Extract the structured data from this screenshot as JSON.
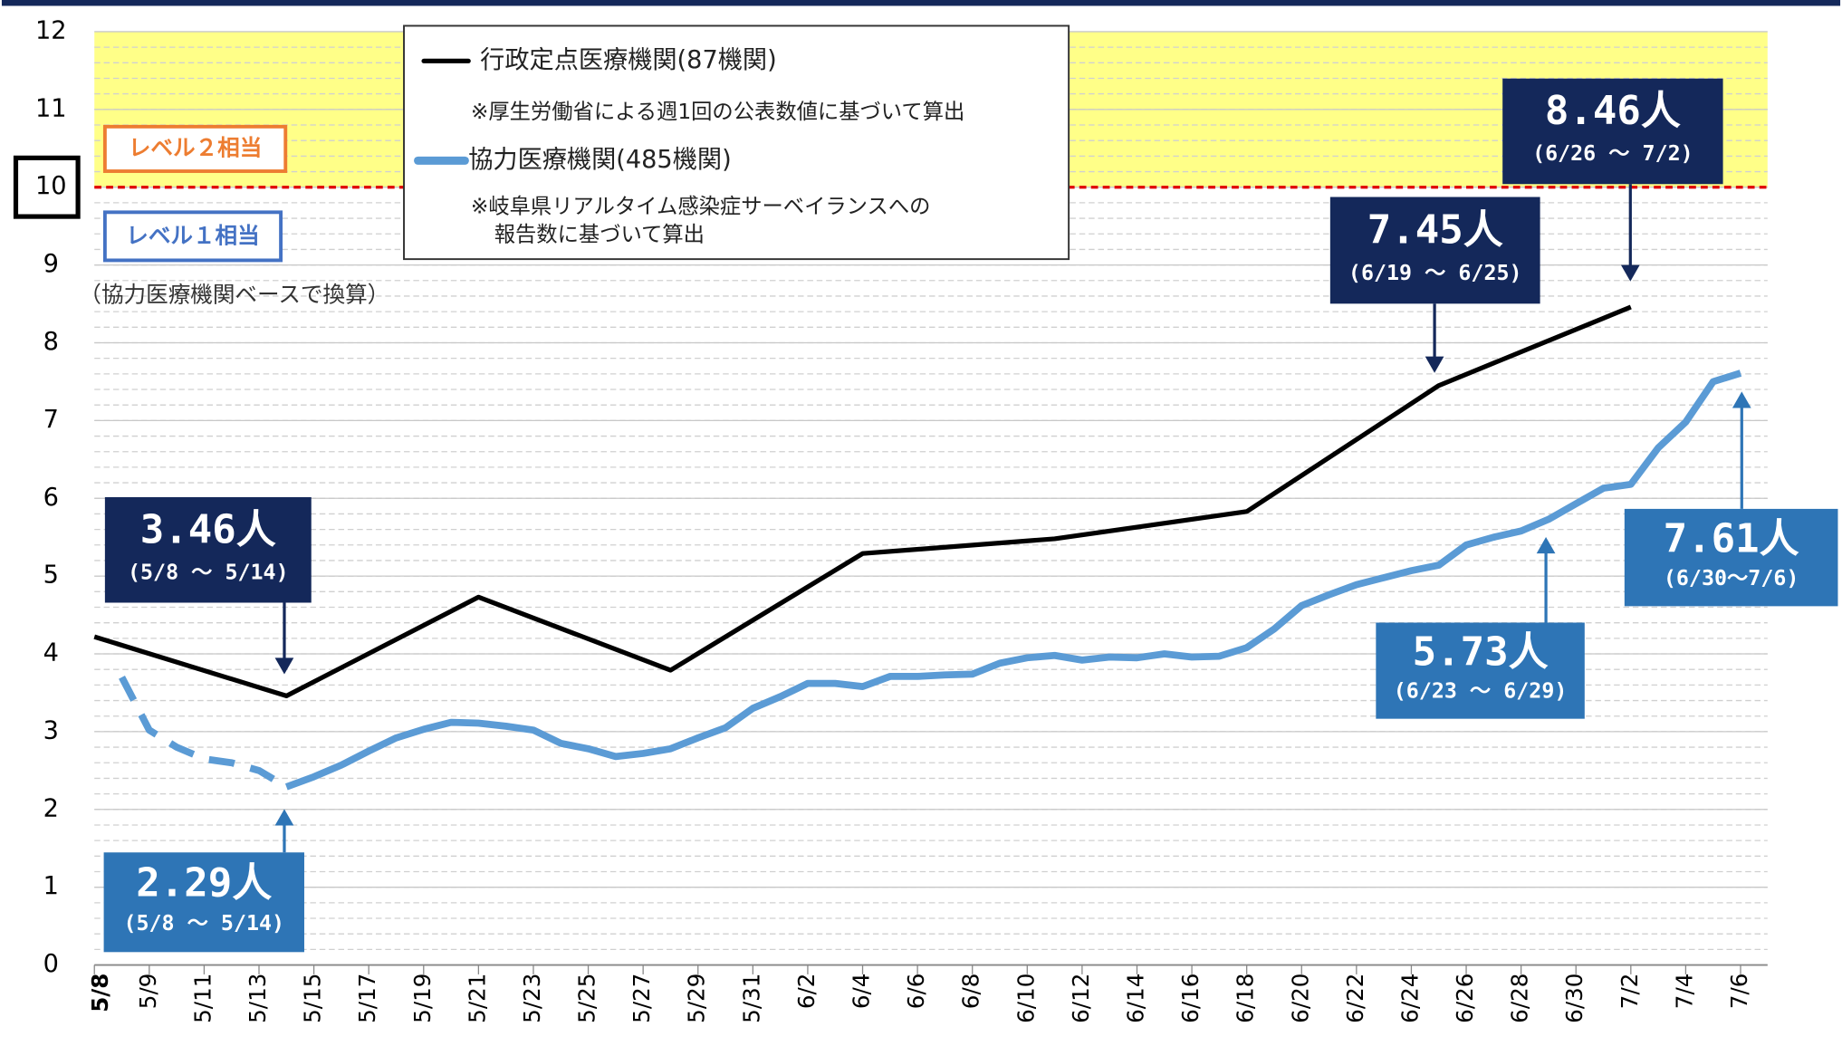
{
  "chart_data": {
    "type": "line",
    "xlim": [
      0,
      60
    ],
    "xticks": [
      {
        "value": 0,
        "label": "5/8"
      },
      {
        "value": 2,
        "label": "5/9"
      },
      {
        "value": 4,
        "label": "5/11"
      },
      {
        "value": 6,
        "label": "5/13"
      },
      {
        "value": 8,
        "label": "5/15"
      },
      {
        "value": 10,
        "label": "5/17"
      },
      {
        "value": 12,
        "label": "5/19"
      },
      {
        "value": 14,
        "label": "5/21"
      },
      {
        "value": 16,
        "label": "5/23"
      },
      {
        "value": 18,
        "label": "5/25"
      },
      {
        "value": 20,
        "label": "5/27"
      },
      {
        "value": 22,
        "label": "5/29"
      },
      {
        "value": 24,
        "label": "5/31"
      },
      {
        "value": 26,
        "label": "6/2"
      },
      {
        "value": 28,
        "label": "6/4"
      },
      {
        "value": 30,
        "label": "6/6"
      },
      {
        "value": 32,
        "label": "6/8"
      },
      {
        "value": 34,
        "label": "6/10"
      },
      {
        "value": 36,
        "label": "6/12"
      },
      {
        "value": 38,
        "label": "6/14"
      },
      {
        "value": 40,
        "label": "6/16"
      },
      {
        "value": 42,
        "label": "6/18"
      },
      {
        "value": 44,
        "label": "6/20"
      },
      {
        "value": 46,
        "label": "6/22"
      },
      {
        "value": 48,
        "label": "6/24"
      },
      {
        "value": 50,
        "label": "6/26"
      },
      {
        "value": 52,
        "label": "6/28"
      },
      {
        "value": 54,
        "label": "6/30"
      },
      {
        "value": 56,
        "label": "7/2"
      },
      {
        "value": 58,
        "label": "7/4"
      },
      {
        "value": 60,
        "label": "7/6"
      }
    ],
    "ylim": [
      0,
      12
    ],
    "yticks": [
      0,
      1,
      2,
      3,
      4,
      5,
      6,
      7,
      8,
      9,
      10,
      11,
      12
    ],
    "minor_grid_step": 0.2,
    "grid": true,
    "level_line": 10,
    "level2_label": "レベル２相当",
    "level1_label": "レベル１相当",
    "level_note": "（協力医療機関ベースで換算）",
    "series": [
      {
        "name": "行政定点医療機関(87機関)",
        "color": "#000000",
        "note": [
          "※厚生労働省による週1回の公表数値に基づいて算出"
        ],
        "x": [
          0,
          7,
          14,
          21,
          28,
          35,
          42,
          49,
          56
        ],
        "values": [
          4.22,
          3.46,
          4.73,
          3.79,
          5.29,
          5.48,
          5.83,
          7.45,
          8.46
        ]
      },
      {
        "name": "協力医療機関(485機関)",
        "color": "#5b9bd5",
        "dashed_range": [
          1,
          7
        ],
        "note": [
          "※岐阜県リアルタイム感染症サーベイランスへの",
          "報告数に基づいて算出"
        ],
        "x": [
          1,
          2,
          3,
          4,
          5,
          6,
          7,
          8,
          9,
          10,
          11,
          12,
          13,
          14,
          15,
          16,
          17,
          18,
          19,
          20,
          21,
          22,
          23,
          24,
          25,
          26,
          27,
          28,
          29,
          30,
          31,
          32,
          33,
          34,
          35,
          36,
          37,
          38,
          39,
          40,
          41,
          42,
          43,
          44,
          45,
          46,
          47,
          48,
          49,
          50,
          51,
          52,
          53,
          54,
          55,
          56,
          57,
          58,
          59,
          60
        ],
        "values": [
          3.7,
          3.02,
          2.8,
          2.65,
          2.6,
          2.5,
          2.29,
          2.42,
          2.57,
          2.75,
          2.92,
          3.03,
          3.12,
          3.11,
          3.07,
          3.02,
          2.85,
          2.78,
          2.68,
          2.72,
          2.78,
          2.92,
          3.05,
          3.3,
          3.45,
          3.62,
          3.62,
          3.58,
          3.71,
          3.71,
          3.73,
          3.74,
          3.88,
          3.95,
          3.98,
          3.92,
          3.96,
          3.95,
          4.0,
          3.96,
          3.97,
          4.08,
          4.32,
          4.62,
          4.76,
          4.89,
          4.98,
          5.07,
          5.14,
          5.4,
          5.5,
          5.58,
          5.73,
          5.93,
          6.13,
          6.18,
          6.65,
          6.98,
          7.5,
          7.61
        ]
      }
    ],
    "annotations": [
      {
        "label": "3.46人",
        "period": "(5/8 ～ 5/14)"
      },
      {
        "label": "2.29人",
        "period": "(5/8 ～ 5/14)"
      },
      {
        "label": "7.45人",
        "period": "(6/19 ～ 6/25)"
      },
      {
        "label": "8.46人",
        "period": "(6/26 ～ 7/2)"
      },
      {
        "label": "5.73人",
        "period": "(6/23 ～ 6/29)"
      },
      {
        "label": "7.61人",
        "period": "(6/30～7/6)"
      }
    ]
  }
}
